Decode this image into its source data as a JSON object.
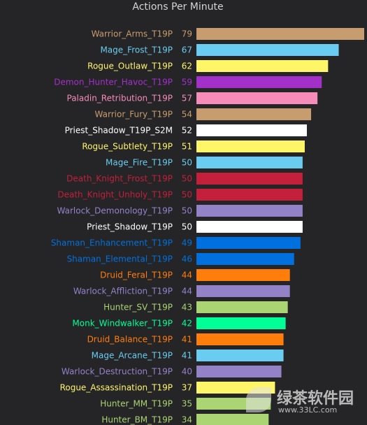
{
  "chart_data": {
    "type": "bar",
    "orientation": "horizontal",
    "title": "Actions Per Minute",
    "xlabel": "",
    "ylabel": "",
    "xlim": [
      0,
      79
    ],
    "grid": false,
    "legend": "none",
    "categories": [
      "Warrior_Arms_T19P",
      "Mage_Frost_T19P",
      "Rogue_Outlaw_T19P",
      "Demon_Hunter_Havoc_T19P",
      "Paladin_Retribution_T19P",
      "Warrior_Fury_T19P",
      "Priest_Shadow_T19P_S2M",
      "Rogue_Subtlety_T19P",
      "Mage_Fire_T19P",
      "Death_Knight_Frost_T19P",
      "Death_Knight_Unholy_T19P",
      "Warlock_Demonology_T19P",
      "Priest_Shadow_T19P",
      "Shaman_Enhancement_T19P",
      "Shaman_Elemental_T19P",
      "Druid_Feral_T19P",
      "Warlock_Affliction_T19P",
      "Hunter_SV_T19P",
      "Monk_Windwalker_T19P",
      "Druid_Balance_T19P",
      "Mage_Arcane_T19P",
      "Warlock_Destruction_T19P",
      "Rogue_Assassination_T19P",
      "Hunter_MM_T19P",
      "Hunter_BM_T19P"
    ],
    "values": [
      79,
      67,
      62,
      59,
      57,
      54,
      52,
      51,
      50,
      50,
      50,
      50,
      50,
      49,
      46,
      44,
      44,
      43,
      42,
      41,
      41,
      40,
      37,
      35,
      34
    ],
    "colors": [
      "#c79c6e",
      "#69ccf0",
      "#fff569",
      "#a330c9",
      "#f58cba",
      "#c79c6e",
      "#ffffff",
      "#fff569",
      "#69ccf0",
      "#c41f3b",
      "#c41f3b",
      "#9482c9",
      "#ffffff",
      "#0070de",
      "#0070de",
      "#ff7d0a",
      "#9482c9",
      "#abd473",
      "#00ff96",
      "#ff7d0a",
      "#69ccf0",
      "#9482c9",
      "#fff569",
      "#abd473",
      "#abd473"
    ]
  },
  "watermark": {
    "logo_name": "leaf-logo-icon",
    "text": "绿茶软件园",
    "url": "www.33LC.com"
  }
}
